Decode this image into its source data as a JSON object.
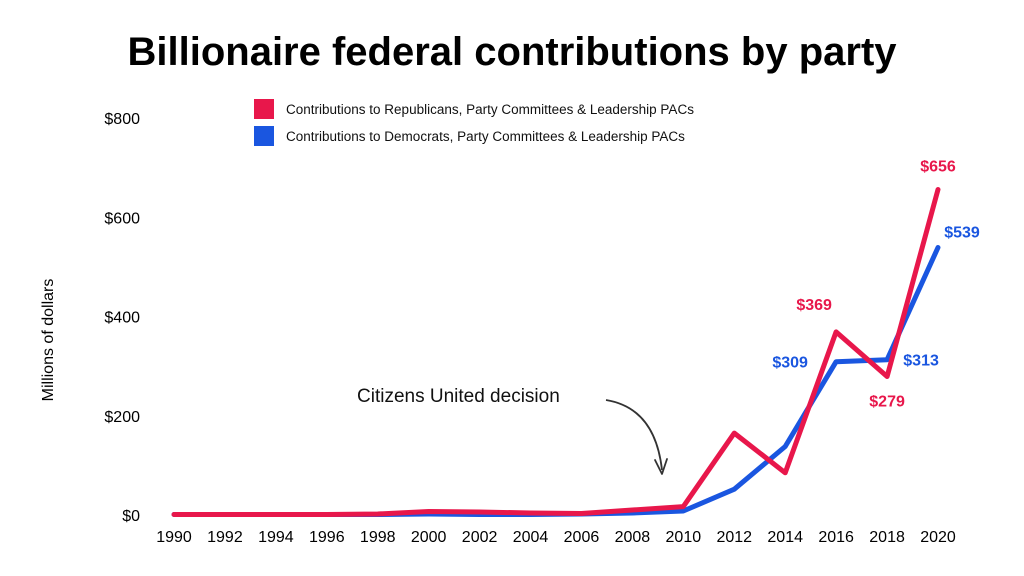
{
  "colors": {
    "republican": "#e8174b",
    "democrat": "#1a56e0",
    "text": "#000000"
  },
  "chart_data": {
    "type": "line",
    "title": "Billionaire federal contributions by party",
    "ylabel": "Millions of dollars",
    "xlabel": "",
    "x": [
      1990,
      1992,
      1994,
      1996,
      1998,
      2000,
      2002,
      2004,
      2006,
      2008,
      2010,
      2012,
      2014,
      2016,
      2018,
      2020
    ],
    "xtick_labels": [
      "1990",
      "1992",
      "1994",
      "1996",
      "1998",
      "2000",
      "2002",
      "2004",
      "2006",
      "2008",
      "2010",
      "2012",
      "2014",
      "2016",
      "2018",
      "2020"
    ],
    "ylim": [
      0,
      800
    ],
    "yticks": [
      0,
      200,
      400,
      600,
      800
    ],
    "ytick_labels": [
      "$0",
      "$200",
      "$400",
      "$600",
      "$800"
    ],
    "grid": false,
    "legend_position": "top-center",
    "series": [
      {
        "name": "Contributions to Republicans, Party Committees & Leadership PACs",
        "color": "#e8174b",
        "values": [
          1,
          1,
          1,
          1,
          2,
          7,
          6,
          4,
          3,
          10,
          17,
          165,
          85,
          369,
          279,
          656
        ]
      },
      {
        "name": "Contributions to Democrats, Party Committees & Leadership PACs",
        "color": "#1a56e0",
        "values": [
          1,
          1,
          1,
          1,
          1,
          2,
          1,
          1,
          2,
          4,
          8,
          52,
          138,
          309,
          313,
          539
        ]
      }
    ],
    "data_labels": [
      {
        "text": "$656",
        "series": 0,
        "x": 2020
      },
      {
        "text": "$539",
        "series": 1,
        "x": 2020
      },
      {
        "text": "$369",
        "series": 0,
        "x": 2016
      },
      {
        "text": "$309",
        "series": 1,
        "x": 2016
      },
      {
        "text": "$313",
        "series": 1,
        "x": 2018
      },
      {
        "text": "$279",
        "series": 0,
        "x": 2018
      }
    ],
    "annotations": [
      {
        "text": "Citizens United decision",
        "x": 2010
      }
    ]
  }
}
